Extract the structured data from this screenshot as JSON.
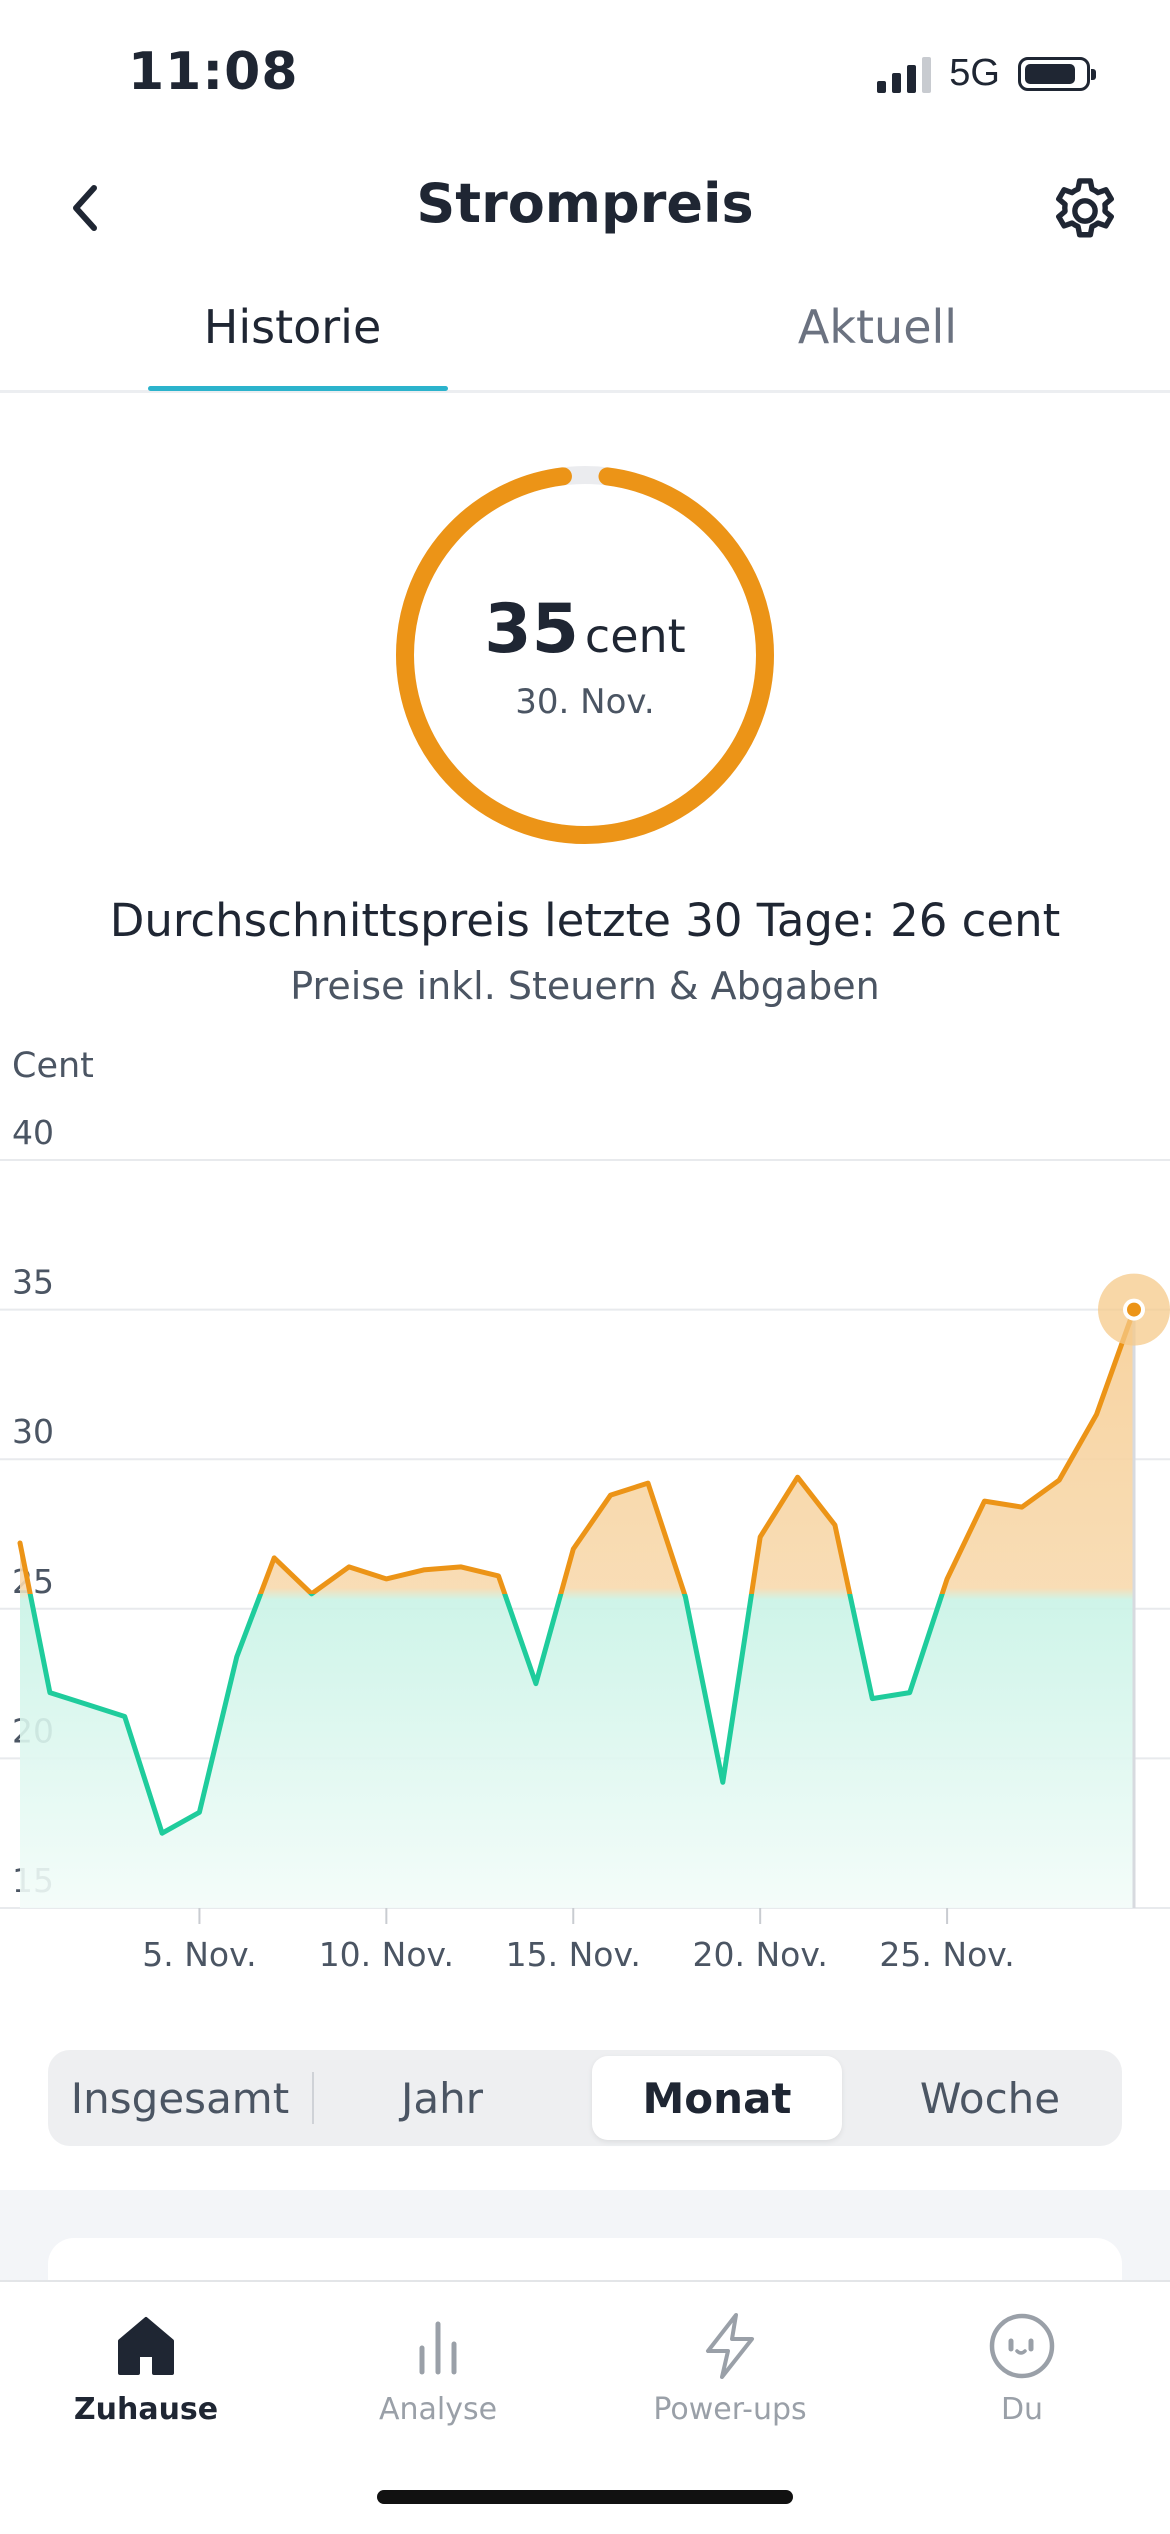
{
  "status": {
    "time": "11:08",
    "network": "5G"
  },
  "header": {
    "title": "Strompreis"
  },
  "tabs": [
    {
      "label": "Historie",
      "active": true
    },
    {
      "label": "Aktuell",
      "active": false
    }
  ],
  "summary": {
    "value": "35",
    "unit": "cent",
    "date": "30. Nov.",
    "average_text": "Durchschnittspreis letzte 30 Tage: 26 cent",
    "note": "Preise inkl. Steuern & Abgaben",
    "ring_fraction": 0.96
  },
  "chart_data": {
    "type": "line",
    "ylabel": "Cent",
    "ylim": [
      15,
      40
    ],
    "yticks": [
      "40",
      "35",
      "30",
      "25",
      "20",
      "15"
    ],
    "xticks": [
      "5. Nov.",
      "10. Nov.",
      "15. Nov.",
      "20. Nov.",
      "25. Nov."
    ],
    "xtick_days": [
      5,
      10,
      15,
      20,
      25
    ],
    "threshold": 25.5,
    "colors": {
      "above": "#ec9417",
      "below": "#1fcc9c"
    },
    "x": [
      0.2,
      1,
      2,
      3,
      4,
      5,
      6,
      7,
      8,
      9,
      10,
      11,
      12,
      13,
      14,
      15,
      16,
      17,
      18,
      19,
      20,
      21,
      22,
      23,
      24,
      25,
      26,
      27,
      28,
      29,
      30
    ],
    "values": [
      27.2,
      22.2,
      21.8,
      21.4,
      17.5,
      18.2,
      23.4,
      26.7,
      25.5,
      26.4,
      26.0,
      26.3,
      26.4,
      26.1,
      22.5,
      27.0,
      28.8,
      29.2,
      25.4,
      19.2,
      27.4,
      29.4,
      27.8,
      22.0,
      22.2,
      26.0,
      28.6,
      28.4,
      29.3,
      31.5,
      35.0
    ]
  },
  "periods": [
    {
      "label": "Insgesamt",
      "active": false
    },
    {
      "label": "Jahr",
      "active": false
    },
    {
      "label": "Monat",
      "active": true
    },
    {
      "label": "Woche",
      "active": false
    }
  ],
  "nav": [
    {
      "label": "Zuhause",
      "icon": "home-icon",
      "active": true
    },
    {
      "label": "Analyse",
      "icon": "bar-chart-icon",
      "active": false
    },
    {
      "label": "Power-ups",
      "icon": "lightning-icon",
      "active": false
    },
    {
      "label": "Du",
      "icon": "face-icon",
      "active": false
    }
  ]
}
